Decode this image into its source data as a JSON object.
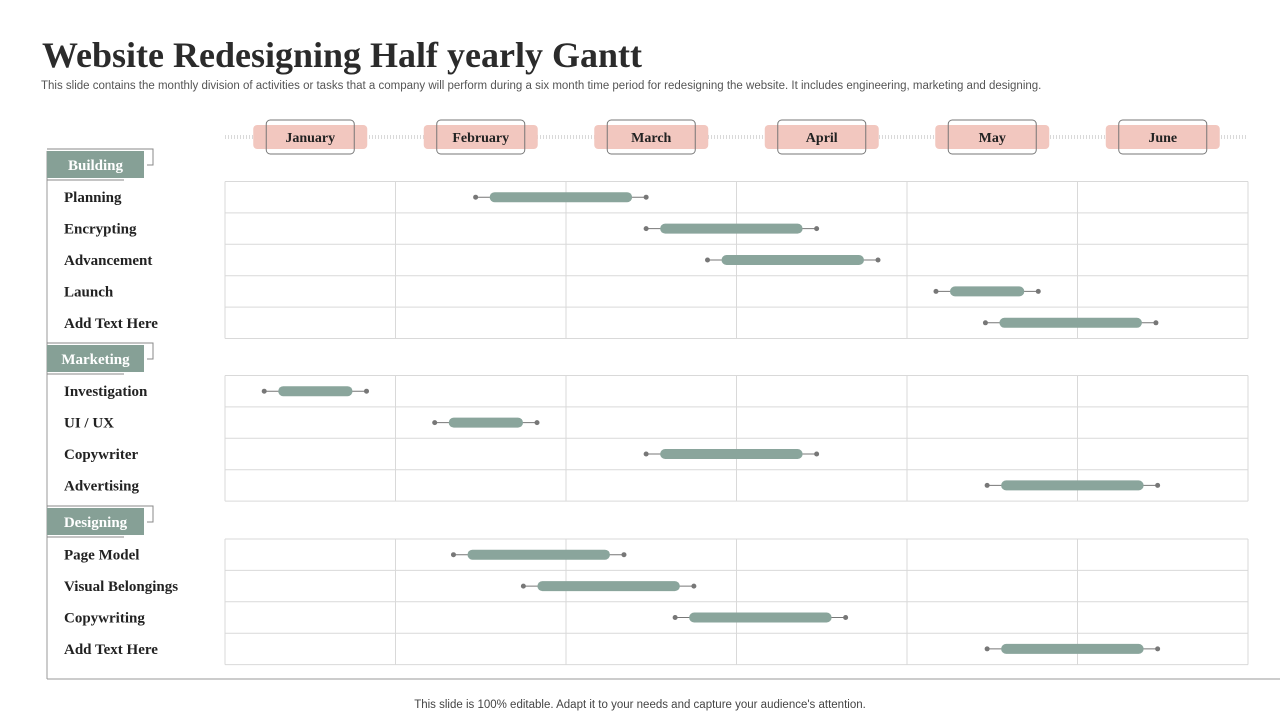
{
  "slide": {
    "title": "Website Redesigning Half yearly Gantt",
    "subtitle": "This slide contains the monthly  division of  activities or tasks that a company will perform during a six month time period for redesigning the website. It includes engineering, marketing and designing.",
    "footer": "This slide is 100% editable. Adapt it to your needs and capture your audience's attention."
  },
  "colors": {
    "bar": "#8aa59c",
    "group_tab": "#86a096",
    "month_pill": "#f2c7bf",
    "grid": "#d9d9d9",
    "whisker": "#777777",
    "dotted_line": "#d9d9d9"
  },
  "chart_data": {
    "type": "gantt",
    "title": "Website Redesigning Half yearly Gantt",
    "time_unit": "month",
    "months": [
      "January",
      "February",
      "March",
      "April",
      "May",
      "June"
    ],
    "time_range": [
      0,
      6
    ],
    "groups": [
      {
        "name": "Building",
        "tasks": [
          {
            "label": "Planning",
            "start": 1.47,
            "end": 2.47
          },
          {
            "label": "Encrypting",
            "start": 2.47,
            "end": 3.47
          },
          {
            "label": "Advancement",
            "start": 2.83,
            "end": 3.83
          },
          {
            "label": "Launch",
            "start": 4.17,
            "end": 4.77
          },
          {
            "label": "Add Text Here",
            "start": 4.46,
            "end": 5.46
          }
        ]
      },
      {
        "name": "Marketing",
        "tasks": [
          {
            "label": "Investigation",
            "start": 0.23,
            "end": 0.83
          },
          {
            "label": "UI / UX",
            "start": 1.23,
            "end": 1.83
          },
          {
            "label": "Copywriter",
            "start": 2.47,
            "end": 3.47
          },
          {
            "label": "Advertising",
            "start": 4.47,
            "end": 5.47
          }
        ]
      },
      {
        "name": "Designing",
        "tasks": [
          {
            "label": "Page Model",
            "start": 1.34,
            "end": 2.34
          },
          {
            "label": "Visual Belongings",
            "start": 1.75,
            "end": 2.75
          },
          {
            "label": "Copywriting",
            "start": 2.64,
            "end": 3.64
          },
          {
            "label": "Add Text Here",
            "start": 4.47,
            "end": 5.47
          }
        ]
      }
    ]
  }
}
